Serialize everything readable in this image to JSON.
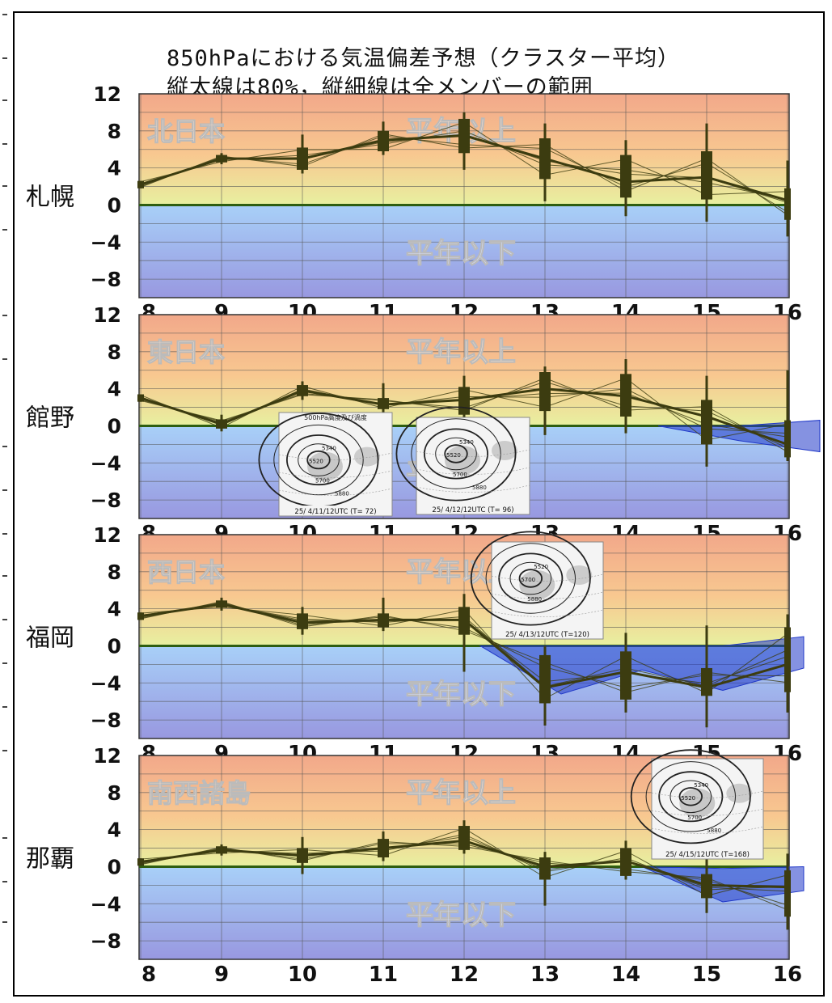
{
  "title_line1": "850hPaにおける気温偏差予想（クラスター平均）",
  "title_line2": "縦太線は80%，縦細線は全メンバーの範囲",
  "colors": {
    "above_top": "#f2a88a",
    "above_mid": "#f8c890",
    "above_low": "#e8f0a0",
    "below_top": "#a8d0f8",
    "below_bottom": "#9898e0",
    "line": "#3c3c10",
    "zero": "#2e5e10",
    "band": "#2038c8"
  },
  "chart_data": [
    {
      "type": "line",
      "station": "札幌",
      "region": "北日本",
      "above_label": "平年以上",
      "below_label": "平年以下",
      "x": [
        "8",
        "9",
        "10",
        "11",
        "12",
        "13",
        "14",
        "15",
        "16"
      ],
      "ylim": [
        -10,
        12
      ],
      "yticks": [
        "12",
        "8",
        "4",
        "0",
        "−4",
        "−8"
      ],
      "mean": [
        2.2,
        5.0,
        5.0,
        7.0,
        7.5,
        5.0,
        2.5,
        3.0,
        0.5
      ],
      "low80": [
        1.8,
        4.6,
        3.8,
        5.8,
        5.6,
        2.8,
        0.8,
        0.6,
        -1.6
      ],
      "high80": [
        2.6,
        5.4,
        6.2,
        8.0,
        9.3,
        7.2,
        5.4,
        5.8,
        1.8
      ],
      "min": [
        1.8,
        4.4,
        3.4,
        5.4,
        3.8,
        0.4,
        -1.2,
        -1.8,
        -3.4
      ],
      "max": [
        2.6,
        5.6,
        7.6,
        9.0,
        10.0,
        8.8,
        7.0,
        8.8,
        4.8
      ],
      "below_band": null
    },
    {
      "type": "line",
      "station": "館野",
      "region": "東日本",
      "above_label": "平年以上",
      "below_label": "平年以下",
      "x": [
        "8",
        "9",
        "10",
        "11",
        "12",
        "13",
        "14",
        "15",
        "16"
      ],
      "ylim": [
        -10,
        12
      ],
      "yticks": [
        "12",
        "8",
        "4",
        "0",
        "−4",
        "−8"
      ],
      "mean": [
        3.0,
        0.2,
        3.8,
        2.3,
        2.8,
        4.0,
        3.2,
        1.0,
        -2.0
      ],
      "low80": [
        2.6,
        -0.3,
        3.2,
        1.8,
        1.2,
        1.6,
        1.0,
        -2.0,
        -3.4
      ],
      "high80": [
        3.4,
        0.7,
        4.4,
        3.0,
        4.2,
        5.8,
        5.6,
        2.8,
        0.6
      ],
      "min": [
        2.6,
        -0.6,
        2.8,
        1.4,
        0.6,
        -1.0,
        -0.8,
        -4.4,
        -3.8
      ],
      "max": [
        3.4,
        1.2,
        4.8,
        4.6,
        5.4,
        6.4,
        7.2,
        5.4,
        6.0
      ],
      "below_band": {
        "from": 6.4,
        "upper": [
          0,
          0,
          0.6
        ],
        "lower": [
          0,
          -1.6,
          -2.8
        ]
      }
    },
    {
      "type": "line",
      "station": "福岡",
      "region": "西日本",
      "above_label": "平年以上",
      "below_label": "平年以下",
      "x": [
        "8",
        "9",
        "10",
        "11",
        "12",
        "13",
        "14",
        "15",
        "16"
      ],
      "ylim": [
        -10,
        12
      ],
      "yticks": [
        "12",
        "8",
        "4",
        "0",
        "−4",
        "−8"
      ],
      "mean": [
        3.2,
        4.5,
        2.5,
        2.8,
        2.8,
        -4.5,
        -2.8,
        -4.5,
        -2.0
      ],
      "low80": [
        2.8,
        4.1,
        1.8,
        2.0,
        1.2,
        -6.2,
        -5.8,
        -5.4,
        -5.0
      ],
      "high80": [
        3.6,
        4.9,
        3.5,
        3.5,
        4.2,
        -1.0,
        -0.6,
        -2.4,
        2.0
      ],
      "min": [
        2.8,
        3.8,
        1.2,
        1.6,
        -2.8,
        -8.6,
        -7.2,
        -8.8,
        -7.2
      ],
      "max": [
        3.6,
        5.2,
        4.2,
        5.2,
        5.6,
        0.0,
        1.4,
        2.2,
        3.4
      ],
      "below_band": {
        "from": 4.2,
        "upper": [
          0,
          0,
          0,
          0,
          1.0
        ],
        "lower": [
          0,
          -5.2,
          -2.6,
          -4.8,
          -2.4
        ]
      }
    },
    {
      "type": "line",
      "station": "那覇",
      "region": "南西諸島",
      "above_label": "平年以上",
      "below_label": "平年以下",
      "x": [
        "8",
        "9",
        "10",
        "11",
        "12",
        "13",
        "14",
        "15",
        "16"
      ],
      "ylim": [
        -10,
        12
      ],
      "yticks": [
        "12",
        "8",
        "4",
        "0",
        "−4",
        "−8"
      ],
      "mean": [
        0.5,
        1.8,
        1.2,
        2.0,
        2.8,
        0.0,
        0.6,
        -2.0,
        -2.2
      ],
      "low80": [
        0.1,
        1.4,
        0.4,
        1.0,
        1.8,
        -1.4,
        -1.0,
        -3.4,
        -5.4
      ],
      "high80": [
        0.9,
        2.2,
        2.0,
        3.0,
        4.4,
        1.0,
        2.0,
        -0.8,
        -0.4
      ],
      "min": [
        0.1,
        1.2,
        -0.8,
        0.6,
        1.4,
        -4.2,
        -1.4,
        -5.0,
        -6.8
      ],
      "max": [
        0.9,
        2.4,
        3.2,
        3.8,
        5.0,
        1.6,
        2.8,
        1.0,
        1.4
      ],
      "below_band": {
        "from": 6.2,
        "upper": [
          0.0,
          -0.2,
          0.0
        ],
        "lower": [
          0.0,
          -3.8,
          -2.6
        ]
      }
    }
  ],
  "insets": [
    {
      "header": "500hPa高度及び渦度",
      "caption": "25/ 4/11/12UTC (T= 72)",
      "contours": [
        "5340",
        "5520",
        "5700",
        "5880"
      ]
    },
    {
      "header": "",
      "caption": "25/ 4/12/12UTC (T= 96)",
      "contours": [
        "5340",
        "5520",
        "5700",
        "5880"
      ]
    },
    {
      "header": "",
      "caption": "25/ 4/13/12UTC (T=120)",
      "contours": [
        "5520",
        "5700",
        "5880"
      ]
    },
    {
      "header": "",
      "caption": "25/ 4/15/12UTC (T=168)",
      "contours": [
        "5340",
        "5520",
        "5700",
        "5880"
      ]
    }
  ]
}
